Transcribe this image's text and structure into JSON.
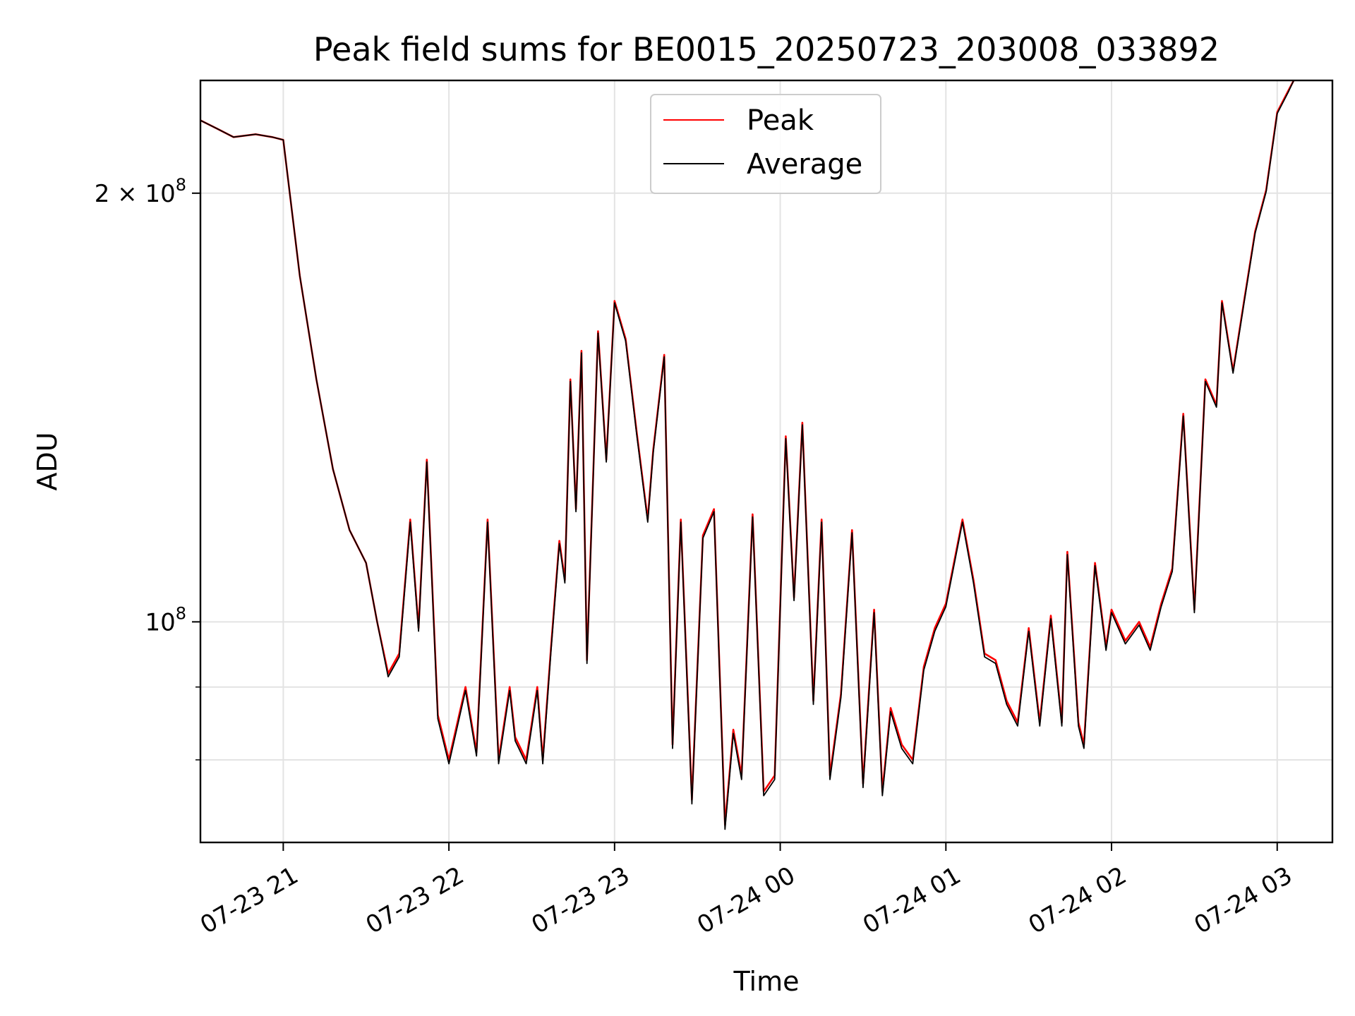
{
  "chart_data": {
    "type": "line",
    "title": "Peak field sums for BE0015_20250723_203008_033892",
    "xlabel": "Time",
    "ylabel": "ADU",
    "y_scale": "log",
    "ylim": [
      70000000,
      240000000
    ],
    "xlim": [
      "2025-07-23 20:30",
      "2025-07-24 03:20"
    ],
    "grid": true,
    "legend_position": "upper center",
    "x_ticks": [
      {
        "value": "2025-07-23 21:00",
        "label": "07-23 21"
      },
      {
        "value": "2025-07-23 22:00",
        "label": "07-23 22"
      },
      {
        "value": "2025-07-23 23:00",
        "label": "07-23 23"
      },
      {
        "value": "2025-07-24 00:00",
        "label": "07-24 00"
      },
      {
        "value": "2025-07-24 01:00",
        "label": "07-24 01"
      },
      {
        "value": "2025-07-24 02:00",
        "label": "07-24 02"
      },
      {
        "value": "2025-07-24 03:00",
        "label": "07-24 03"
      }
    ],
    "y_ticks": [
      {
        "value": 100000000,
        "base": "10",
        "exp": "8",
        "mantissa": ""
      },
      {
        "value": 200000000,
        "base": "10",
        "exp": "8",
        "mantissa": "2 × "
      }
    ],
    "y_minor_ticks": [
      80000000,
      90000000
    ],
    "x": [
      "2025-07-23 20:30",
      "2025-07-23 20:36",
      "2025-07-23 20:42",
      "2025-07-23 20:50",
      "2025-07-23 20:56",
      "2025-07-23 21:00",
      "2025-07-23 21:06",
      "2025-07-23 21:12",
      "2025-07-23 21:18",
      "2025-07-23 21:24",
      "2025-07-23 21:30",
      "2025-07-23 21:34",
      "2025-07-23 21:38",
      "2025-07-23 21:42",
      "2025-07-23 21:46",
      "2025-07-23 21:49",
      "2025-07-23 21:52",
      "2025-07-23 21:56",
      "2025-07-23 22:00",
      "2025-07-23 22:06",
      "2025-07-23 22:10",
      "2025-07-23 22:14",
      "2025-07-23 22:18",
      "2025-07-23 22:22",
      "2025-07-23 22:24",
      "2025-07-23 22:28",
      "2025-07-23 22:32",
      "2025-07-23 22:34",
      "2025-07-23 22:37",
      "2025-07-23 22:40",
      "2025-07-23 22:42",
      "2025-07-23 22:44",
      "2025-07-23 22:46",
      "2025-07-23 22:48",
      "2025-07-23 22:50",
      "2025-07-23 22:54",
      "2025-07-23 22:57",
      "2025-07-23 23:00",
      "2025-07-23 23:04",
      "2025-07-23 23:08",
      "2025-07-23 23:12",
      "2025-07-23 23:14",
      "2025-07-23 23:18",
      "2025-07-23 23:21",
      "2025-07-23 23:24",
      "2025-07-23 23:28",
      "2025-07-23 23:32",
      "2025-07-23 23:36",
      "2025-07-23 23:40",
      "2025-07-23 23:43",
      "2025-07-23 23:46",
      "2025-07-23 23:50",
      "2025-07-23 23:54",
      "2025-07-23 23:58",
      "2025-07-24 00:02",
      "2025-07-24 00:05",
      "2025-07-24 00:08",
      "2025-07-24 00:12",
      "2025-07-24 00:15",
      "2025-07-24 00:18",
      "2025-07-24 00:22",
      "2025-07-24 00:26",
      "2025-07-24 00:30",
      "2025-07-24 00:34",
      "2025-07-24 00:37",
      "2025-07-24 00:40",
      "2025-07-24 00:44",
      "2025-07-24 00:48",
      "2025-07-24 00:52",
      "2025-07-24 00:56",
      "2025-07-24 01:00",
      "2025-07-24 01:06",
      "2025-07-24 01:10",
      "2025-07-24 01:14",
      "2025-07-24 01:18",
      "2025-07-24 01:22",
      "2025-07-24 01:26",
      "2025-07-24 01:30",
      "2025-07-24 01:34",
      "2025-07-24 01:38",
      "2025-07-24 01:42",
      "2025-07-24 01:44",
      "2025-07-24 01:48",
      "2025-07-24 01:50",
      "2025-07-24 01:54",
      "2025-07-24 01:58",
      "2025-07-24 02:00",
      "2025-07-24 02:05",
      "2025-07-24 02:10",
      "2025-07-24 02:14",
      "2025-07-24 02:18",
      "2025-07-24 02:22",
      "2025-07-24 02:26",
      "2025-07-24 02:30",
      "2025-07-24 02:34",
      "2025-07-24 02:38",
      "2025-07-24 02:40",
      "2025-07-24 02:44",
      "2025-07-24 02:48",
      "2025-07-24 02:52",
      "2025-07-24 02:56",
      "2025-07-24 03:00",
      "2025-07-24 03:04",
      "2025-07-24 03:06"
    ],
    "series": [
      {
        "name": "Peak",
        "color": "#ff0000",
        "values": [
          225000000,
          222000000,
          219000000,
          220000000,
          219000000,
          218000000,
          175000000,
          148000000,
          128000000,
          116000000,
          110000000,
          100000000,
          92000000,
          95000000,
          118000000,
          99000000,
          130000000,
          86000000,
          80000000,
          90000000,
          81000000,
          118000000,
          80000000,
          90000000,
          83000000,
          80000000,
          90000000,
          80000000,
          96000000,
          114000000,
          107000000,
          148000000,
          120000000,
          155000000,
          94000000,
          160000000,
          130000000,
          168000000,
          158000000,
          136000000,
          118000000,
          132000000,
          154000000,
          82000000,
          118000000,
          75000000,
          115000000,
          120000000,
          72000000,
          84000000,
          78000000,
          119000000,
          76000000,
          78000000,
          135000000,
          104000000,
          138000000,
          88000000,
          118000000,
          78000000,
          89000000,
          116000000,
          77000000,
          102000000,
          76000000,
          87000000,
          82000000,
          80000000,
          93000000,
          99000000,
          103000000,
          118000000,
          107000000,
          95000000,
          94000000,
          88000000,
          85000000,
          99000000,
          85000000,
          101000000,
          85000000,
          112000000,
          85000000,
          82000000,
          110000000,
          96000000,
          102000000,
          97000000,
          100000000,
          96000000,
          103000000,
          109000000,
          140000000,
          102000000,
          148000000,
          142000000,
          168000000,
          150000000,
          168000000,
          188000000,
          201000000,
          228000000,
          236000000,
          240000000
        ]
      },
      {
        "name": "Average",
        "color": "#000000",
        "values": [
          225000000,
          222000000,
          219000000,
          220000000,
          219000000,
          218000000,
          175000000,
          148000000,
          128000000,
          116000000,
          110000000,
          100000000,
          91500000,
          94500000,
          117500000,
          98500000,
          129500000,
          85500000,
          79500000,
          89500000,
          80500000,
          117500000,
          79500000,
          89500000,
          82500000,
          79500000,
          89500000,
          79500000,
          95500000,
          113500000,
          106500000,
          147500000,
          119500000,
          154500000,
          93500000,
          159500000,
          129500000,
          167500000,
          157500000,
          135500000,
          117500000,
          131500000,
          153500000,
          81500000,
          117500000,
          74500000,
          114500000,
          119500000,
          71500000,
          83500000,
          77500000,
          118500000,
          75500000,
          77500000,
          134500000,
          103500000,
          137500000,
          87500000,
          117500000,
          77500000,
          88500000,
          115500000,
          76500000,
          101500000,
          75500000,
          86500000,
          81500000,
          79500000,
          92500000,
          98500000,
          102500000,
          117500000,
          106500000,
          94500000,
          93500000,
          87500000,
          84500000,
          98500000,
          84500000,
          100500000,
          84500000,
          111500000,
          84500000,
          81500000,
          109500000,
          95500000,
          101500000,
          96500000,
          99500000,
          95500000,
          102500000,
          108500000,
          139500000,
          101500000,
          147500000,
          141500000,
          167500000,
          149500000,
          167500000,
          187500000,
          200500000,
          227500000,
          235500000,
          240000000
        ]
      }
    ]
  }
}
